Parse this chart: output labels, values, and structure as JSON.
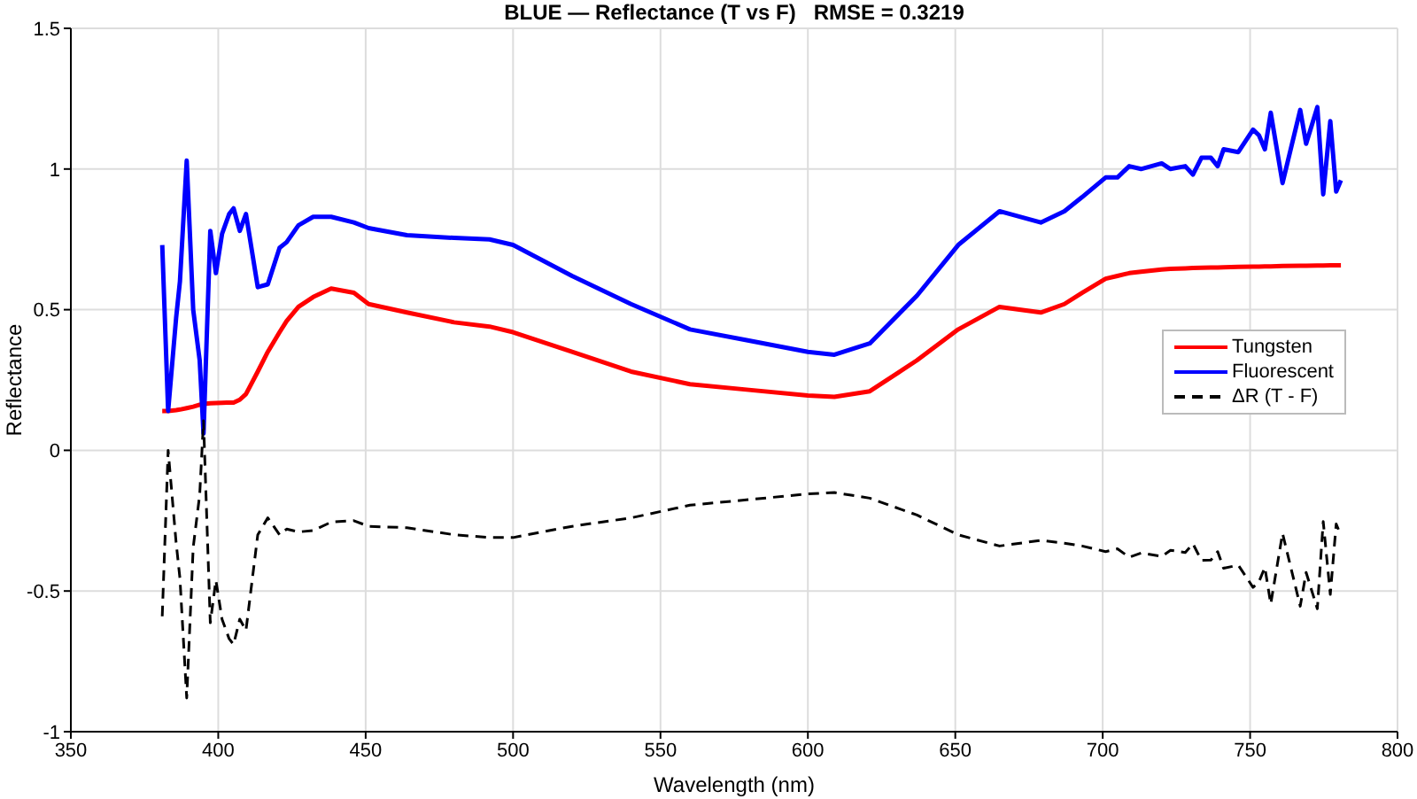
{
  "chart_data": {
    "type": "line",
    "title": "BLUE — Reflectance (T vs F)   RMSE = 0.3219",
    "xlabel": "Wavelength (nm)",
    "ylabel": "Reflectance",
    "x": [
      381,
      383,
      385.7,
      387,
      389.3,
      391.5,
      393.7,
      395,
      397.3,
      399.2,
      401.3,
      403.7,
      405.2,
      407.3,
      409.4,
      413.4,
      416.8,
      420.8,
      423.2,
      427.2,
      432.2,
      438.3,
      446,
      451,
      464,
      480,
      492,
      500,
      520,
      540,
      560,
      580,
      600,
      609,
      621,
      637,
      651,
      665,
      679,
      687,
      693,
      701,
      705,
      709,
      713,
      720,
      723,
      728,
      730.6,
      733.5,
      736.7,
      739,
      741,
      746,
      751,
      753,
      755,
      757,
      761,
      767,
      769,
      772.8,
      774.8,
      777.2,
      779.2,
      780.8
    ],
    "series": [
      {
        "name": "Tungsten",
        "color": "#ff0000",
        "line_style": "solid",
        "values": [
          0.14,
          0.14,
          0.143,
          0.145,
          0.15,
          0.155,
          0.162,
          0.165,
          0.167,
          0.168,
          0.169,
          0.17,
          0.17,
          0.18,
          0.2,
          0.28,
          0.35,
          0.42,
          0.46,
          0.51,
          0.545,
          0.575,
          0.56,
          0.52,
          0.49,
          0.455,
          0.44,
          0.42,
          0.35,
          0.28,
          0.235,
          0.215,
          0.195,
          0.19,
          0.21,
          0.32,
          0.43,
          0.51,
          0.49,
          0.52,
          0.56,
          0.61,
          0.62,
          0.63,
          0.635,
          0.643,
          0.645,
          0.647,
          0.648,
          0.649,
          0.65,
          0.65,
          0.651,
          0.652,
          0.653,
          0.653,
          0.654,
          0.654,
          0.655,
          0.656,
          0.656,
          0.657,
          0.657,
          0.658,
          0.658,
          0.658
        ]
      },
      {
        "name": "Fluorescent",
        "color": "#0000ff",
        "line_style": "solid",
        "values": [
          0.73,
          0.14,
          0.47,
          0.6,
          1.03,
          0.5,
          0.32,
          0.06,
          0.78,
          0.63,
          0.77,
          0.84,
          0.86,
          0.78,
          0.84,
          0.58,
          0.59,
          0.72,
          0.74,
          0.8,
          0.83,
          0.83,
          0.81,
          0.79,
          0.765,
          0.755,
          0.75,
          0.73,
          0.62,
          0.52,
          0.43,
          0.39,
          0.35,
          0.34,
          0.38,
          0.55,
          0.73,
          0.85,
          0.81,
          0.85,
          0.9,
          0.97,
          0.97,
          1.01,
          1.0,
          1.02,
          1.0,
          1.01,
          0.98,
          1.04,
          1.04,
          1.01,
          1.07,
          1.06,
          1.14,
          1.12,
          1.07,
          1.2,
          0.95,
          1.21,
          1.09,
          1.22,
          0.91,
          1.17,
          0.92,
          0.96
        ]
      },
      {
        "name": "ΔR (T - F)",
        "color": "#000000",
        "line_style": "dashed",
        "values": [
          -0.59,
          0,
          -0.327,
          -0.455,
          -0.88,
          -0.345,
          -0.158,
          0.105,
          -0.613,
          -0.462,
          -0.601,
          -0.67,
          -0.69,
          -0.6,
          -0.64,
          -0.3,
          -0.24,
          -0.3,
          -0.28,
          -0.29,
          -0.285,
          -0.255,
          -0.25,
          -0.27,
          -0.275,
          -0.3,
          -0.31,
          -0.31,
          -0.27,
          -0.24,
          -0.195,
          -0.175,
          -0.155,
          -0.15,
          -0.17,
          -0.23,
          -0.3,
          -0.34,
          -0.32,
          -0.33,
          -0.34,
          -0.36,
          -0.35,
          -0.38,
          -0.365,
          -0.377,
          -0.355,
          -0.363,
          -0.332,
          -0.391,
          -0.39,
          -0.36,
          -0.419,
          -0.408,
          -0.487,
          -0.467,
          -0.416,
          -0.546,
          -0.295,
          -0.554,
          -0.434,
          -0.563,
          -0.253,
          -0.512,
          -0.262,
          -0.302
        ]
      }
    ],
    "xlim": [
      350,
      800
    ],
    "xticks": [
      350,
      400,
      450,
      500,
      550,
      600,
      650,
      700,
      750,
      800
    ],
    "ylim": [
      -1,
      1.5
    ],
    "yticks": [
      -1,
      -0.5,
      0,
      0.5,
      1,
      1.5
    ],
    "grid": true,
    "legend": "right",
    "marker": "none"
  }
}
